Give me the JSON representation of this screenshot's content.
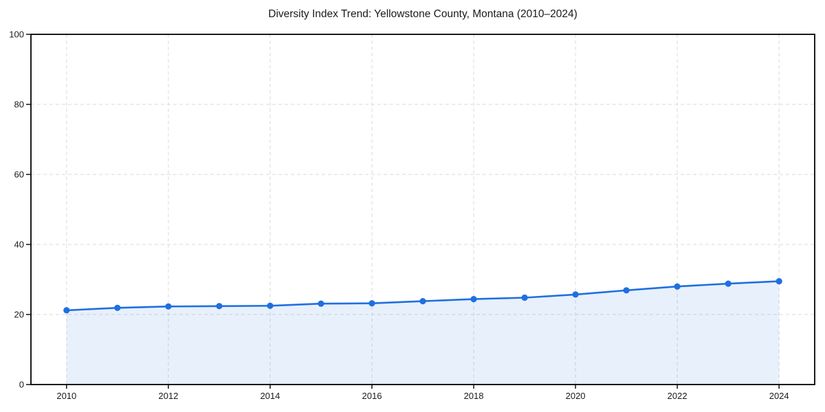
{
  "figure": {
    "background": "#ffffff"
  },
  "chart_data": {
    "type": "line",
    "title": "Diversity Index Trend: Yellowstone County, Montana (2010–2024)",
    "xlabel": "",
    "ylabel": "",
    "x": [
      2010,
      2011,
      2012,
      2013,
      2014,
      2015,
      2016,
      2017,
      2018,
      2019,
      2020,
      2021,
      2022,
      2023,
      2024
    ],
    "series": [
      {
        "name": "Diversity Index",
        "values": [
          21.2,
          21.9,
          22.3,
          22.4,
          22.5,
          23.1,
          23.2,
          23.8,
          24.4,
          24.8,
          25.7,
          26.9,
          28.0,
          28.8,
          29.5
        ]
      }
    ],
    "xlim": [
      2009.3,
      2024.7
    ],
    "ylim": [
      0,
      100
    ],
    "xticks": [
      2010,
      2012,
      2014,
      2016,
      2018,
      2020,
      2022,
      2024
    ],
    "yticks": [
      0,
      20,
      40,
      60,
      80,
      100
    ],
    "grid": true,
    "grid_style": "dashed",
    "legend": "none",
    "marker": "circle",
    "area_fill": true,
    "colors": {
      "line": "#1f6fe0",
      "marker": "#1f6fe0",
      "fill": "rgba(31, 111, 224, 0.10)",
      "grid": "#dadada",
      "axis": "#000000",
      "text": "#1a1a1a",
      "background": "#ffffff"
    }
  }
}
